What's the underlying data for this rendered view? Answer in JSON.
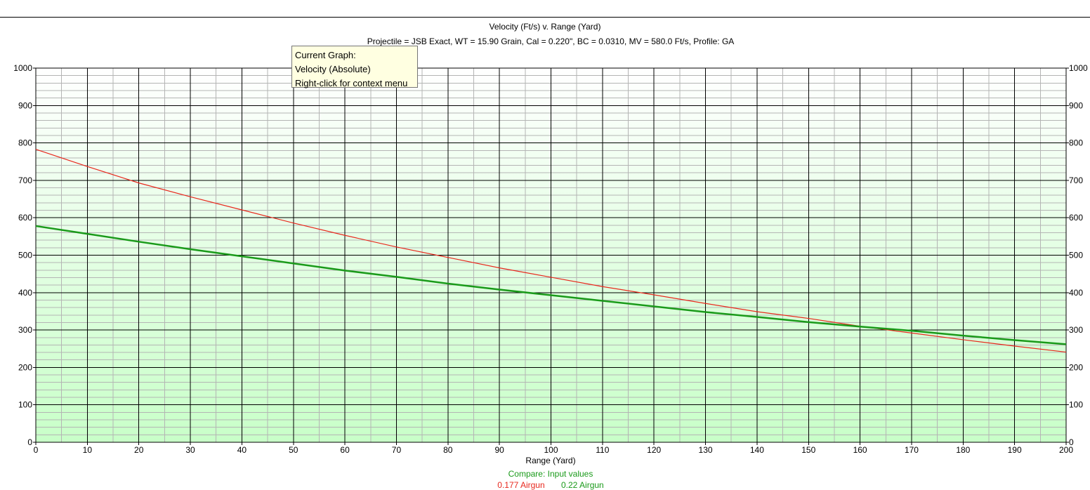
{
  "chart_data": {
    "type": "line",
    "title": "Velocity (Ft/s) v. Range (Yard)",
    "subtitle": "Projectile = JSB Exact, WT = 15.90 Grain, Cal = 0.220\", BC = 0.0310, MV = 580.0 Ft/s, Profile: GA",
    "xlabel": "Range (Yard)",
    "ylabel": "",
    "xlim": [
      0,
      200
    ],
    "ylim": [
      0,
      1000
    ],
    "x_ticks": [
      "0",
      "10",
      "20",
      "30",
      "40",
      "50",
      "60",
      "70",
      "80",
      "90",
      "100",
      "110",
      "120",
      "130",
      "140",
      "150",
      "160",
      "170",
      "180",
      "190",
      "200"
    ],
    "y_ticks": [
      "0",
      "100",
      "200",
      "300",
      "400",
      "500",
      "600",
      "700",
      "800",
      "900",
      "1000"
    ],
    "grid": true,
    "legend_position": "bottom-center",
    "compare_label": "Compare: Input values",
    "series": [
      {
        "name": "0.177 Airgun",
        "color": "#e8281e",
        "x": [
          0,
          10,
          20,
          30,
          40,
          50,
          60,
          70,
          80,
          90,
          100,
          110,
          120,
          130,
          140,
          150,
          160,
          170,
          180,
          190,
          200
        ],
        "values": [
          783,
          737,
          693,
          656,
          621,
          586,
          553,
          522,
          494,
          466,
          441,
          416,
          394,
          371,
          349,
          331,
          310,
          292,
          274,
          257,
          241
        ]
      },
      {
        "name": "0.22 Airgun",
        "color": "#1a9a1a",
        "x": [
          0,
          10,
          20,
          30,
          40,
          50,
          60,
          70,
          80,
          90,
          100,
          110,
          120,
          130,
          140,
          150,
          160,
          170,
          180,
          190,
          200
        ],
        "values": [
          578,
          557,
          536,
          516,
          497,
          478,
          459,
          442,
          424,
          408,
          393,
          378,
          363,
          348,
          335,
          321,
          309,
          298,
          285,
          273,
          262
        ]
      }
    ]
  },
  "tooltip": {
    "line1": "Current Graph:",
    "line2": "Velocity (Absolute)",
    "line3": "Right-click for context menu"
  },
  "colors": {
    "plot_bg_top": "#ffffff",
    "plot_bg_bottom": "#c8ffc8",
    "major_grid": "#000000",
    "minor_grid": "#b4b4b4"
  }
}
